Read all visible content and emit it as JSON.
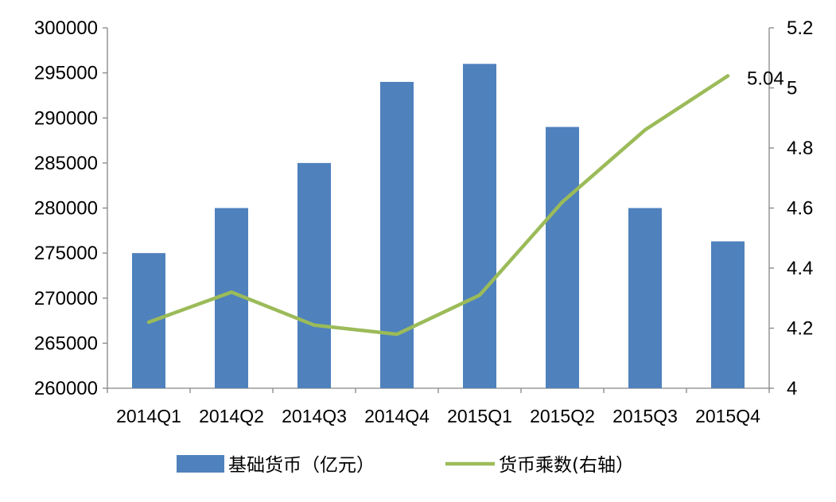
{
  "chart_data": {
    "type": "bar",
    "categories": [
      "2014Q1",
      "2014Q2",
      "2014Q3",
      "2014Q4",
      "2015Q1",
      "2015Q2",
      "2015Q3",
      "2015Q4"
    ],
    "series": [
      {
        "name": "基础货币（亿元）",
        "type": "bar",
        "axis": "left",
        "color": "#4F81BD",
        "values": [
          275000,
          280000,
          285000,
          294000,
          296000,
          289000,
          280000,
          276300
        ]
      },
      {
        "name": "货币乘数(右轴）",
        "type": "line",
        "axis": "right",
        "color": "#9BBB59",
        "values": [
          4.22,
          4.32,
          4.21,
          4.18,
          4.31,
          4.62,
          4.86,
          5.04
        ]
      }
    ],
    "y_left": {
      "min": 260000,
      "max": 300000,
      "ticks": [
        "260000",
        "265000",
        "270000",
        "275000",
        "280000",
        "285000",
        "290000",
        "295000",
        "300000"
      ]
    },
    "y_right": {
      "min": 4,
      "max": 5.2,
      "ticks": [
        "4",
        "4.2",
        "4.4",
        "4.6",
        "4.8",
        "5",
        "5.2"
      ]
    },
    "annotations": [
      {
        "series": 1,
        "index": 7,
        "text": "5.04"
      }
    ],
    "grid": false,
    "legend_position": "bottom"
  }
}
